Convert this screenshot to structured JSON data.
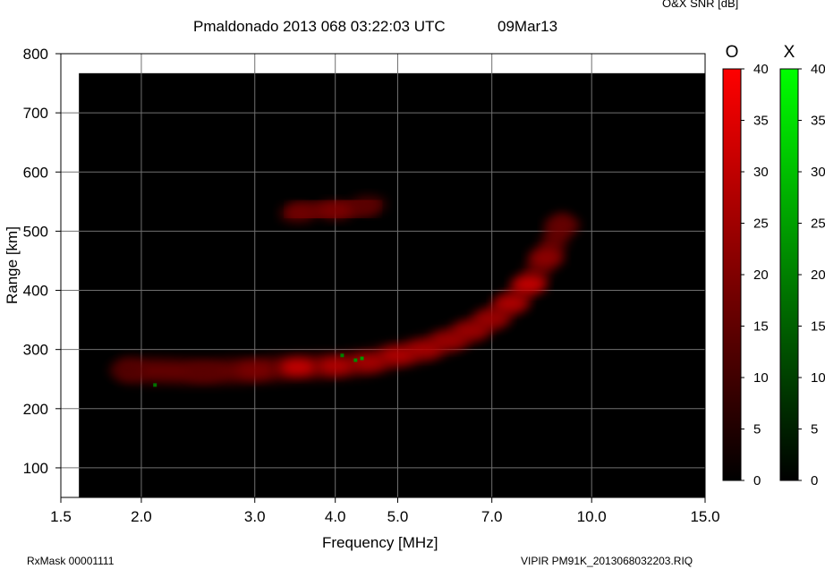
{
  "header": {
    "title": "Pmaldonado 2013 068 03:22:03 UTC",
    "date": "09Mar13",
    "snr_title": "O&X SNR [dB]"
  },
  "footer": {
    "left": "RxMask 00001111",
    "right": "VIPIR  PM91K_2013068032203.RIQ"
  },
  "colors": {
    "o_mode": "#ff0000",
    "x_mode": "#00ff00",
    "background": "#000000",
    "grid": "#707070"
  },
  "chart_data": {
    "type": "heatmap",
    "title": "Pmaldonado 2013 068 03:22:03 UTC",
    "xlabel": "Frequency [MHz]",
    "ylabel": "Range [km]",
    "x_scale": "log",
    "xlim": [
      1.5,
      15.0
    ],
    "ylim": [
      50,
      800
    ],
    "x_ticks": [
      "1.5",
      "2.0",
      "3.0",
      "4.0",
      "5.0",
      "7.0",
      "10.0",
      "15.0"
    ],
    "y_ticks": [
      "100",
      "200",
      "300",
      "400",
      "500",
      "600",
      "700",
      "800"
    ],
    "grid": true,
    "colorbars": [
      {
        "label": "O",
        "min": 0,
        "max": 40,
        "ticks": [
          "0",
          "5",
          "10",
          "15",
          "20",
          "25",
          "30",
          "35",
          "40"
        ],
        "color": "#ff0000"
      },
      {
        "label": "X",
        "min": 0,
        "max": 40,
        "ticks": [
          "0",
          "5",
          "10",
          "15",
          "20",
          "25",
          "30",
          "35",
          "40"
        ],
        "color": "#00ff00"
      }
    ],
    "o_trace": {
      "name": "O",
      "points": [
        {
          "f": 1.9,
          "range": 265,
          "snr": 12
        },
        {
          "f": 2.5,
          "range": 262,
          "snr": 14
        },
        {
          "f": 3.0,
          "range": 265,
          "snr": 20
        },
        {
          "f": 3.5,
          "range": 270,
          "snr": 34
        },
        {
          "f": 4.0,
          "range": 272,
          "snr": 30
        },
        {
          "f": 4.5,
          "range": 278,
          "snr": 28
        },
        {
          "f": 5.0,
          "range": 290,
          "snr": 30
        },
        {
          "f": 5.5,
          "range": 300,
          "snr": 28
        },
        {
          "f": 6.0,
          "range": 315,
          "snr": 26
        },
        {
          "f": 6.5,
          "range": 332,
          "snr": 26
        },
        {
          "f": 7.0,
          "range": 352,
          "snr": 26
        },
        {
          "f": 7.5,
          "range": 378,
          "snr": 30
        },
        {
          "f": 8.0,
          "range": 410,
          "snr": 34
        },
        {
          "f": 8.5,
          "range": 455,
          "snr": 24
        },
        {
          "f": 9.0,
          "range": 510,
          "snr": 16
        }
      ]
    },
    "o_multihop": {
      "name": "O",
      "points": [
        {
          "f": 3.5,
          "range": 530,
          "snr": 18
        },
        {
          "f": 4.0,
          "range": 535,
          "snr": 20
        },
        {
          "f": 4.5,
          "range": 545,
          "snr": 14
        }
      ]
    },
    "x_echoes": {
      "name": "X",
      "points": [
        {
          "f": 2.1,
          "range": 240,
          "snr": 18
        },
        {
          "f": 4.1,
          "range": 290,
          "snr": 20
        },
        {
          "f": 4.3,
          "range": 282,
          "snr": 22
        },
        {
          "f": 4.4,
          "range": 285,
          "snr": 24
        }
      ]
    }
  }
}
